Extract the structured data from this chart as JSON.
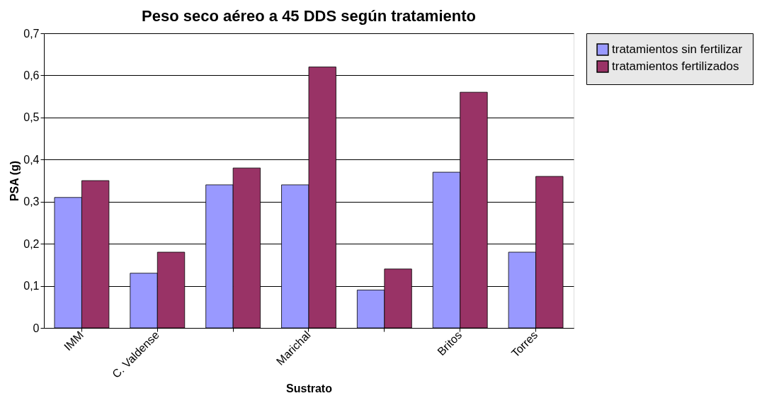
{
  "chart_data": {
    "type": "bar",
    "title": "Peso seco aéreo a 45 DDS según tratamiento",
    "xlabel": "Sustrato",
    "ylabel": "PSA (g)",
    "categories": [
      "IMM",
      "C. Valdense",
      null,
      "Marichal",
      null,
      "Britos",
      "Torres"
    ],
    "series": [
      {
        "name": "tratamientos sin fertilizar",
        "color": "#9999ff",
        "values": [
          0.31,
          0.13,
          0.34,
          0.34,
          0.09,
          0.37,
          0.18
        ]
      },
      {
        "name": "tratamientos fertilizados",
        "color": "#993366",
        "values": [
          0.35,
          0.18,
          0.38,
          0.62,
          0.14,
          0.56,
          0.36
        ]
      }
    ],
    "ylim": [
      0,
      0.7
    ],
    "yticks": [
      {
        "value": 0,
        "label": "0"
      },
      {
        "value": 0.1,
        "label": "0,1"
      },
      {
        "value": 0.2,
        "label": "0,2"
      },
      {
        "value": 0.3,
        "label": "0,3"
      },
      {
        "value": 0.4,
        "label": "0,4"
      },
      {
        "value": 0.5,
        "label": "0,5"
      },
      {
        "value": 0.6,
        "label": "0,6"
      },
      {
        "value": 0.7,
        "label": "0,7"
      }
    ],
    "grid": "y",
    "legend": "right"
  }
}
